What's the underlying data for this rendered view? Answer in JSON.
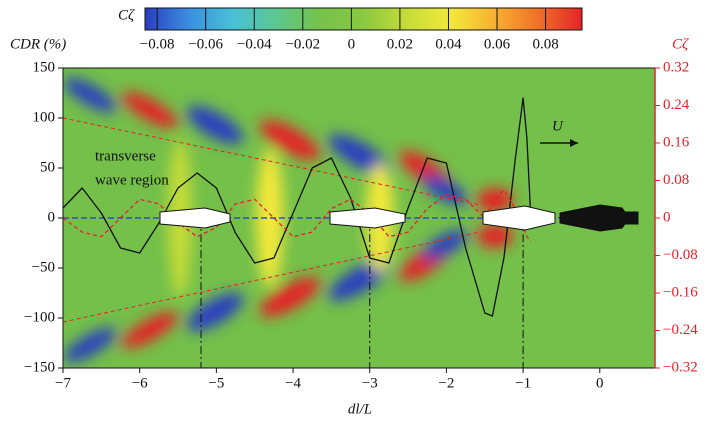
{
  "chart_data": {
    "type": "line",
    "x_label": "dl/L",
    "y_label": "CDR (%)",
    "y2_label": "Cζ",
    "annotations": [
      "transverse",
      "wave region",
      "U"
    ],
    "colorbar": {
      "label": "Cζ",
      "clim": [
        -0.085,
        0.095
      ],
      "colors": [
        "#2a3cc0",
        "#3a8ee0",
        "#48c0d8",
        "#5cc890",
        "#76c24a",
        "#8ac840",
        "#c6dc38",
        "#f2e83a",
        "#f8b030",
        "#f07028",
        "#e42428"
      ],
      "ticks": [
        {
          "value": -0.08,
          "label": "−0.08"
        },
        {
          "value": -0.06,
          "label": "−0.06"
        },
        {
          "value": -0.04,
          "label": "−0.04"
        },
        {
          "value": -0.02,
          "label": "−0.02"
        },
        0,
        0.02,
        0.04,
        0.06,
        0.08
      ]
    },
    "x": [
      -7,
      -6.75,
      -6.5,
      -6.25,
      -6,
      -5.75,
      -5.5,
      -5.25,
      -5,
      -4.75,
      -4.5,
      -4.25,
      -4,
      -3.75,
      -3.5,
      -3.25,
      -3,
      -2.75,
      -2.5,
      -2.25,
      -2,
      -1.75,
      -1.5,
      -1.4,
      -1.25,
      -1.1,
      -1,
      -0.95,
      -0.9
    ],
    "series": [
      {
        "name": "CDR",
        "color": "#111111",
        "dash": "none",
        "axis": "y",
        "values": [
          10,
          30,
          5,
          -30,
          -35,
          -5,
          30,
          45,
          30,
          -15,
          -45,
          -40,
          5,
          50,
          60,
          20,
          -40,
          -45,
          10,
          60,
          55,
          -30,
          -95,
          -98,
          -40,
          60,
          120,
          80,
          0
        ]
      },
      {
        "name": "Cζ",
        "color": "#e8202a",
        "dash": "4 3",
        "axis": "y2",
        "values": [
          0,
          -0.03,
          -0.04,
          0,
          0.04,
          0.03,
          -0.01,
          -0.04,
          -0.02,
          0.03,
          0.04,
          0,
          -0.04,
          -0.03,
          0.02,
          0.04,
          0.01,
          -0.04,
          -0.03,
          0.02,
          0.05,
          0.04,
          0,
          0.03,
          0.06,
          0.02,
          -0.02,
          -0.04,
          -0.05
        ]
      }
    ],
    "reference_x": [
      -5.2,
      -3,
      -1
    ],
    "xlim": [
      -7,
      0.72
    ],
    "xticks": [
      {
        "value": -7,
        "label": "−7"
      },
      {
        "value": -6,
        "label": "−6"
      },
      {
        "value": -5,
        "label": "−5"
      },
      {
        "value": -4,
        "label": "−4"
      },
      {
        "value": -3,
        "label": "−3"
      },
      {
        "value": -2,
        "label": "−2"
      },
      {
        "value": -1,
        "label": "−1"
      },
      0
    ],
    "ylim": [
      -150,
      150
    ],
    "yticks": [
      {
        "value": -150,
        "label": "−150"
      },
      {
        "value": -100,
        "label": "−100"
      },
      {
        "value": -50,
        "label": "−50"
      },
      0,
      50,
      100,
      150
    ],
    "y2lim": [
      -0.32,
      0.32
    ],
    "y2ticks": [
      {
        "value": -0.32,
        "label": "−0.32"
      },
      {
        "value": -0.24,
        "label": "−0.24"
      },
      {
        "value": -0.16,
        "label": "−0.16"
      },
      {
        "value": -0.08,
        "label": "−0.08"
      },
      0,
      0.08,
      0.16,
      0.24,
      0.32
    ],
    "y2_color": "#e8202a"
  }
}
